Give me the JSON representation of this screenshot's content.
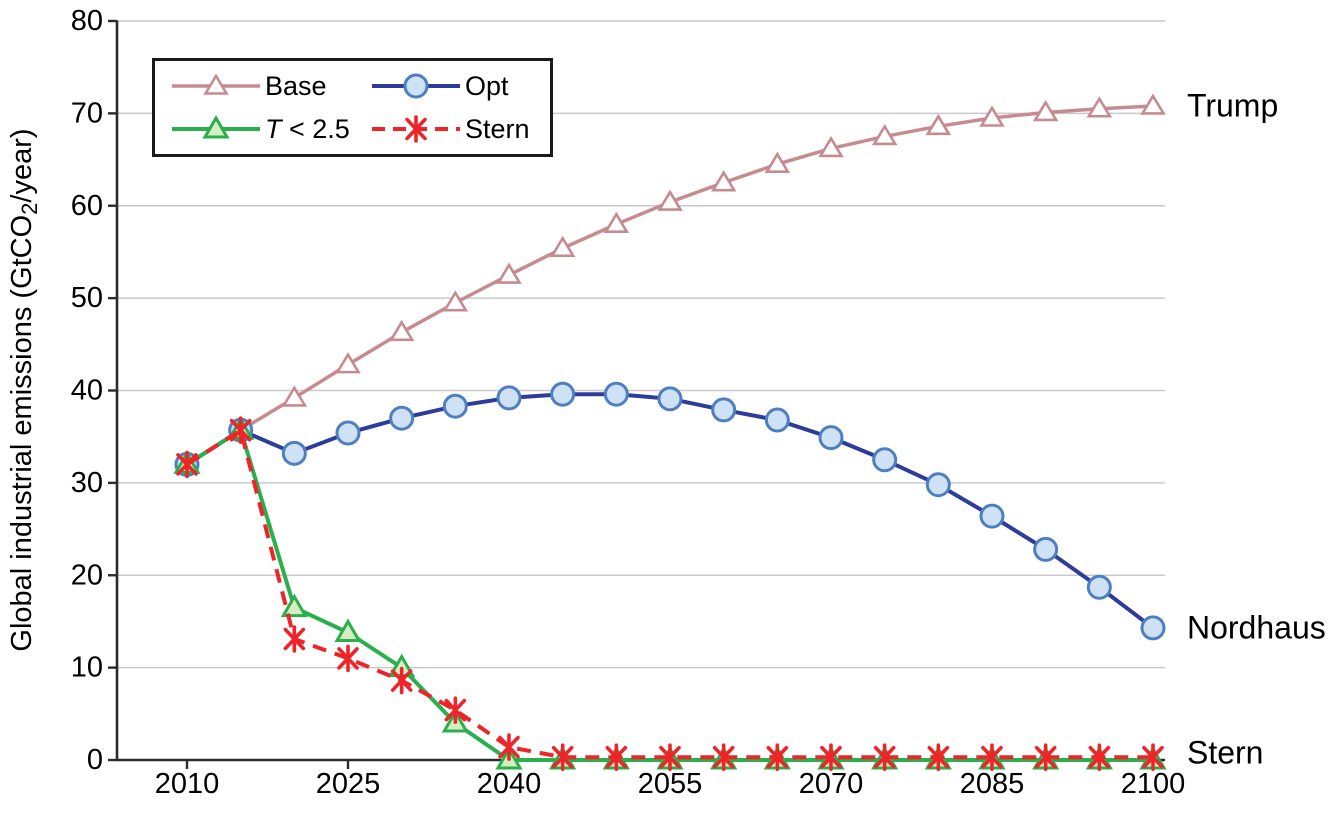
{
  "figure": {
    "ylabel_parts": [
      {
        "text": "Global industrial emissions (GtCO",
        "sub": false
      },
      {
        "text": "2",
        "sub": true
      },
      {
        "text": "/year)",
        "sub": false
      }
    ]
  },
  "colors": {
    "base_line": "#c68b90",
    "opt_line": "#2d3c9b",
    "opt_marker_fill": "#cfe1f5",
    "opt_marker_edge": "#4e7fc1",
    "t25_line": "#29b04c",
    "t25_marker_fill": "#d7ecc2",
    "stern_line": "#ee2429",
    "gridline": "#c9c9c9",
    "axis": "#2b2b2b",
    "text": "#000000"
  },
  "chart_data": {
    "type": "line",
    "title": "",
    "xlabel": "",
    "ylabel": "Global industrial emissions (GtCO2/year)",
    "grid": "horizontal-only",
    "legend_position": "top-left-inside",
    "xlim": [
      2003,
      2101
    ],
    "ylim": [
      0,
      80
    ],
    "xticks": [
      2010,
      2025,
      2040,
      2055,
      2070,
      2085,
      2100
    ],
    "yticks": [
      0,
      10,
      20,
      30,
      40,
      50,
      60,
      70,
      80
    ],
    "x": [
      2010,
      2015,
      2020,
      2025,
      2030,
      2035,
      2040,
      2045,
      2050,
      2055,
      2060,
      2065,
      2070,
      2075,
      2080,
      2085,
      2090,
      2095,
      2100
    ],
    "series": [
      {
        "name": "Base",
        "label_parts": [
          {
            "text": "Base",
            "italic": false
          }
        ],
        "annotation": "Trump",
        "marker": "triangle-open",
        "dashed": false,
        "values": [
          32.0,
          35.7,
          39.2,
          42.8,
          46.3,
          49.5,
          52.5,
          55.4,
          58.0,
          60.4,
          62.5,
          64.5,
          66.2,
          67.5,
          68.6,
          69.5,
          70.1,
          70.5,
          70.8
        ]
      },
      {
        "name": "Opt",
        "label_parts": [
          {
            "text": "Opt",
            "italic": false
          }
        ],
        "annotation": "Nordhaus",
        "marker": "circle",
        "dashed": false,
        "values": [
          32.0,
          35.7,
          33.2,
          35.4,
          37.0,
          38.3,
          39.2,
          39.6,
          39.6,
          39.1,
          37.9,
          36.8,
          34.9,
          32.5,
          29.8,
          26.4,
          22.8,
          18.7,
          14.3
        ]
      },
      {
        "name": "T < 2.5",
        "label_parts": [
          {
            "text": "T",
            "italic": true
          },
          {
            "text": " < 2.5",
            "italic": false
          }
        ],
        "annotation": "",
        "marker": "triangle-filled",
        "dashed": false,
        "values": [
          32.0,
          35.7,
          16.5,
          13.8,
          10.0,
          4.0,
          0.0,
          0.0,
          0.0,
          0.0,
          0.0,
          0.0,
          0.0,
          0.0,
          0.0,
          0.0,
          0.0,
          0.0,
          0.0
        ]
      },
      {
        "name": "Stern",
        "label_parts": [
          {
            "text": "Stern",
            "italic": false
          }
        ],
        "annotation": "Stern",
        "marker": "asterisk",
        "dashed": true,
        "values": [
          32.0,
          35.7,
          13.1,
          11.0,
          8.6,
          5.4,
          1.4,
          0.3,
          0.3,
          0.3,
          0.3,
          0.3,
          0.3,
          0.3,
          0.3,
          0.3,
          0.3,
          0.3,
          0.3
        ]
      }
    ]
  }
}
